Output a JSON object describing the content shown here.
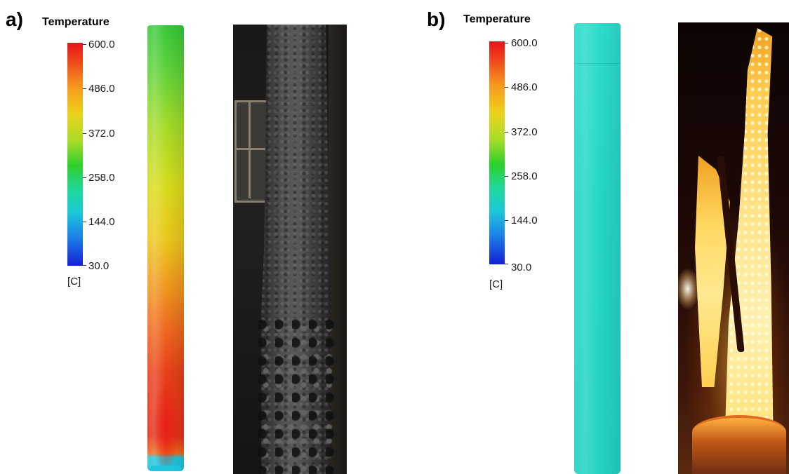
{
  "panels": [
    {
      "label": "a)",
      "legend": {
        "title": "Temperature",
        "ticks": [
          "600.0",
          "486.0",
          "372.0",
          "258.0",
          "144.0",
          "30.0"
        ],
        "unit": "[C]"
      },
      "simulation_colors": {
        "top": "#2fd33a",
        "middle": "#e8d21c",
        "bottom": "#e8321a",
        "base": "#1ec8d8"
      },
      "photo_description_icon": "charred-steel-column-photo"
    },
    {
      "label": "b)",
      "legend": {
        "title": "Temperature",
        "ticks": [
          "600.0",
          "486.0",
          "372.0",
          "258.0",
          "144.0",
          "30.0"
        ],
        "unit": "[C]"
      },
      "simulation_colors": {
        "uniform": "#22d8c4"
      },
      "photo_description_icon": "molten-glowing-column-photo"
    }
  ]
}
